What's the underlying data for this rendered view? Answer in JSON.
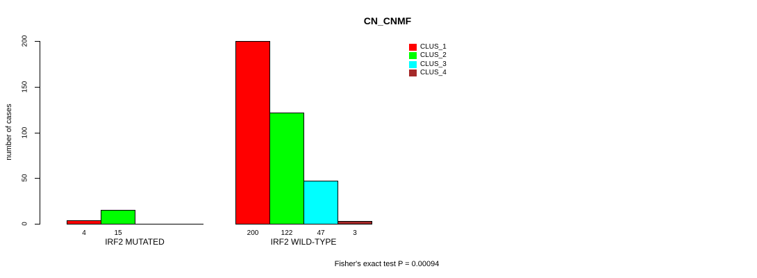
{
  "chart_data": {
    "type": "bar",
    "title": "CN_CNMF",
    "ylabel": "number of cases",
    "xlabel": "",
    "ylim": [
      0,
      200
    ],
    "yticks": [
      0,
      50,
      100,
      150,
      200
    ],
    "grid": false,
    "legend_position": "top-right",
    "bar_border_color": "#000000",
    "axis_color": "#000000",
    "series": [
      {
        "name": "CLUS_1",
        "color": "#ff0000"
      },
      {
        "name": "CLUS_2",
        "color": "#00ff00"
      },
      {
        "name": "CLUS_3",
        "color": "#00ffff"
      },
      {
        "name": "CLUS_4",
        "color": "#a52a2a"
      }
    ],
    "groups": [
      {
        "label": "IRF2 MUTATED",
        "values": [
          4,
          15,
          0,
          0
        ],
        "value_labels": [
          "4",
          "15",
          "",
          ""
        ]
      },
      {
        "label": "IRF2 WILD-TYPE",
        "values": [
          200,
          122,
          47,
          3
        ],
        "value_labels": [
          "200",
          "122",
          "47",
          "3"
        ]
      }
    ],
    "annotation": "Fisher's exact test P = 0.00094"
  }
}
